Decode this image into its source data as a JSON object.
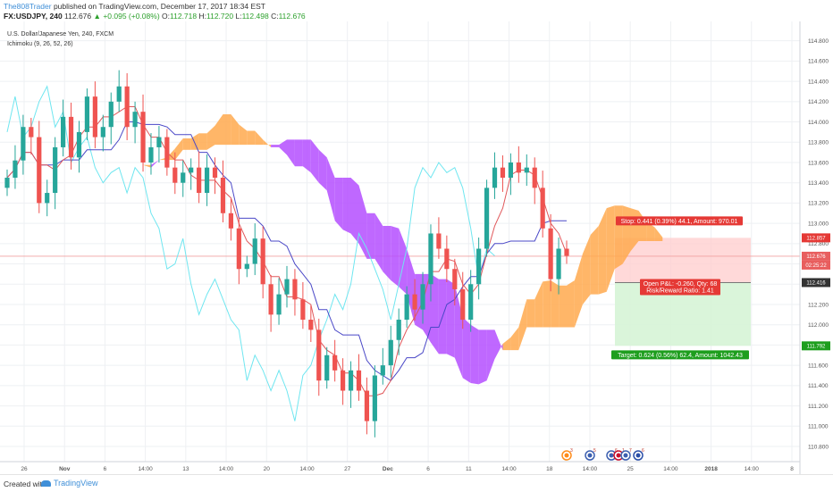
{
  "header": {
    "author": "The808Trader",
    "published": "published on TradingView.com, December 17, 2017 18:34 EST",
    "symbol": "FX:USDJPY, 240",
    "last": "112.676",
    "change": "+0.095 (+0.08%)",
    "o_label": "O:",
    "o_value": "112.718",
    "h_label": "H:",
    "h_value": "112.720",
    "l_label": "L:",
    "l_value": "112.498",
    "c_label": "C:",
    "c_value": "112.676"
  },
  "legend": {
    "instrument": "U.S. Dollar/Japanese Yen, 240, FXCM",
    "indicator": "Ichimoku (9, 26, 52, 26)"
  },
  "colors": {
    "up_candle": "#26a69a",
    "down_candle": "#ef5350",
    "tenkan": "#e0585b",
    "kijun": "#4a48c7",
    "chikou": "#6fe6f0",
    "kumo_bull": "#ffa94d",
    "kumo_bear": "#b44dff",
    "stop_zone": "#ffcfcf",
    "target_zone": "#d6f4d6"
  },
  "chart_data": {
    "type": "candlestick",
    "title": "U.S. Dollar/Japanese Yen, 240, FXCM",
    "yaxis": {
      "range": [
        110.8,
        114.85
      ],
      "ticks": [
        "114.800",
        "114.600",
        "114.400",
        "114.200",
        "114.000",
        "113.800",
        "113.600",
        "113.400",
        "113.200",
        "113.000",
        "112.800",
        "112.600",
        "112.400",
        "112.200",
        "112.000",
        "111.800",
        "111.600",
        "111.400",
        "111.200",
        "111.000",
        "110.800"
      ]
    },
    "xaxis": {
      "ticks": [
        {
          "label": "26",
          "type": "day"
        },
        {
          "label": "Nov",
          "type": "month"
        },
        {
          "label": "6",
          "type": "day"
        },
        {
          "label": "14:00",
          "type": "time"
        },
        {
          "label": "13",
          "type": "day"
        },
        {
          "label": "14:00",
          "type": "time"
        },
        {
          "label": "20",
          "type": "day"
        },
        {
          "label": "14:00",
          "type": "time"
        },
        {
          "label": "27",
          "type": "day"
        },
        {
          "label": "Dec",
          "type": "month"
        },
        {
          "label": "6",
          "type": "day"
        },
        {
          "label": "11",
          "type": "day"
        },
        {
          "label": "14:00",
          "type": "time"
        },
        {
          "label": "18",
          "type": "day"
        },
        {
          "label": "14:00",
          "type": "time"
        },
        {
          "label": "25",
          "type": "day"
        },
        {
          "label": "14:00",
          "type": "time"
        },
        {
          "label": "2018",
          "type": "year"
        },
        {
          "label": "14:00",
          "type": "time"
        },
        {
          "label": "8",
          "type": "day"
        }
      ]
    },
    "close_series": [
      113.45,
      113.62,
      113.95,
      113.85,
      113.2,
      113.3,
      113.75,
      114.05,
      113.65,
      113.9,
      114.25,
      113.85,
      113.95,
      114.2,
      114.35,
      113.95,
      114.1,
      113.6,
      113.75,
      113.85,
      113.55,
      113.4,
      113.5,
      113.55,
      113.3,
      113.55,
      113.45,
      113.1,
      112.95,
      112.55,
      112.6,
      112.85,
      112.4,
      112.1,
      112.3,
      112.45,
      112.25,
      112.05,
      111.95,
      111.45,
      111.7,
      111.55,
      111.35,
      111.55,
      111.35,
      111.05,
      111.5,
      111.6,
      111.85,
      112.05,
      112.3,
      112.15,
      112.4,
      112.9,
      112.75,
      112.55,
      112.35,
      112.05,
      112.4,
      112.75,
      113.35,
      113.55,
      113.45,
      113.6,
      113.5,
      113.55,
      113.35,
      112.95,
      112.45,
      112.75,
      112.68
    ],
    "current_price": 112.676,
    "price_labels": [
      {
        "value": 112.857,
        "text": "112.857",
        "color": "#e53935"
      },
      {
        "value": 112.676,
        "text": "112.676",
        "color": "#e85e5e"
      },
      {
        "value": 112.416,
        "text": "112.416",
        "color": "#333333"
      },
      {
        "value": 111.792,
        "text": "111.792",
        "color": "#1e9e1e"
      }
    ],
    "countdown": "02:25:22",
    "position": {
      "type": "long",
      "entry": 112.416,
      "stop": 112.857,
      "target": 111.792,
      "stop_text": "Stop: 0.441 (0.39%) 44.1, Amount: 970.01",
      "pnl_text": "Open P&L: -0.260, Qty: 68",
      "rr_text": "Risk/Reward Ratio: 1.41",
      "target_text": "Target: 0.624 (0.56%) 62.4, Amount: 1042.43"
    },
    "event_markers": [
      {
        "flag": "orange-circle",
        "count": "3"
      },
      {
        "flag": "us",
        "count": "5"
      },
      {
        "flag": "us",
        "count": "6"
      },
      {
        "flag": "uk",
        "count": "1"
      },
      {
        "flag": "us",
        "count": "7"
      },
      {
        "flag": "eu",
        "count": "6"
      }
    ]
  },
  "footer": {
    "created_with": "Created with",
    "brand": "TradingView"
  }
}
